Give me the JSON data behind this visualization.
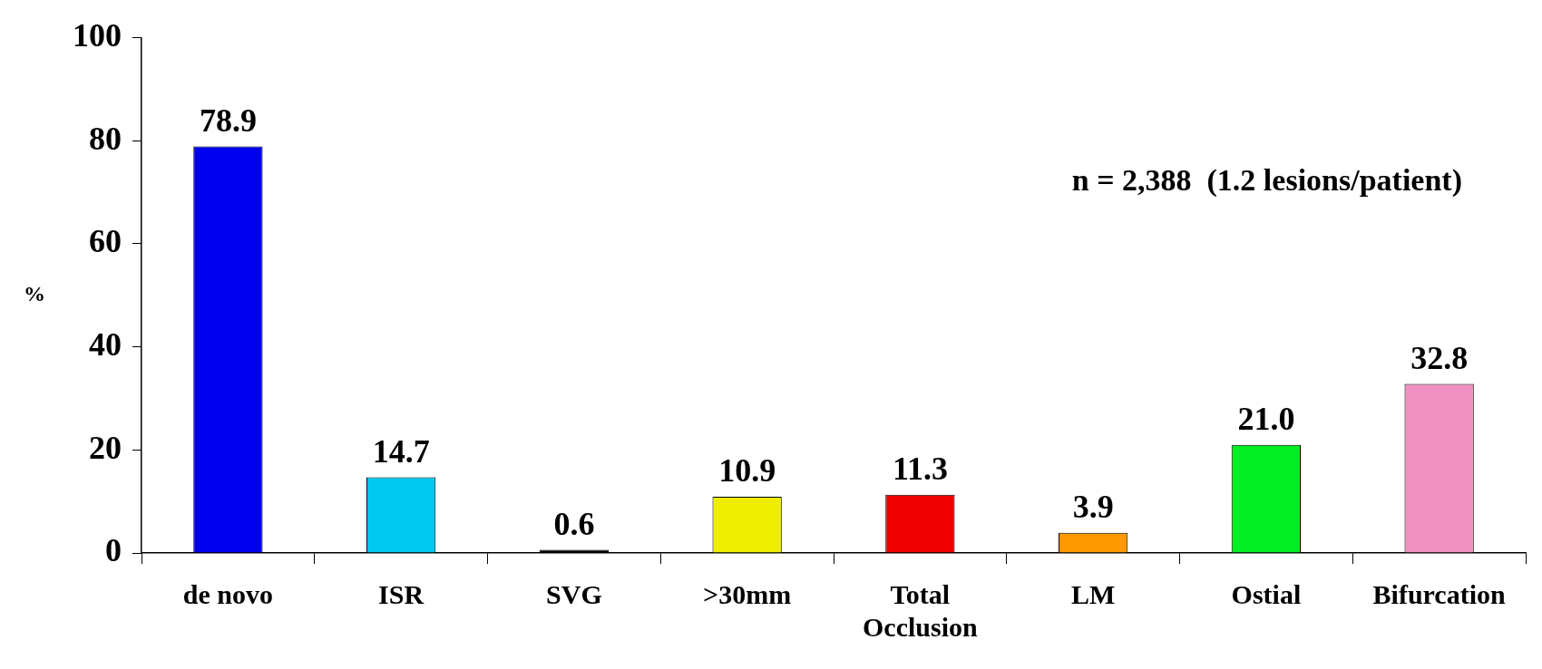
{
  "chart_data": {
    "type": "bar",
    "ylabel": "%",
    "categories": [
      "de novo",
      "ISR",
      "SVG",
      ">30mm",
      "Total Occlusion",
      "LM",
      "Ostial",
      "Bifurcation"
    ],
    "values": [
      78.9,
      14.7,
      0.6,
      10.9,
      11.3,
      3.9,
      21.0,
      32.8
    ],
    "colors": [
      "#0000ee",
      "#00c8f0",
      "#000000",
      "#eeee00",
      "#ee0000",
      "#ff9900",
      "#00ee22",
      "#f090c0"
    ],
    "ylim": [
      0,
      100
    ],
    "yticks": [
      0,
      20,
      40,
      60,
      80,
      100
    ],
    "value_labels": [
      "78.9",
      "14.7",
      "0.6",
      "10.9",
      "11.3",
      "3.9",
      "21.0",
      "32.8"
    ],
    "grid": false,
    "legend": false,
    "annotations": [
      "n = 2,388  (1.2 lesions/patient)"
    ]
  }
}
